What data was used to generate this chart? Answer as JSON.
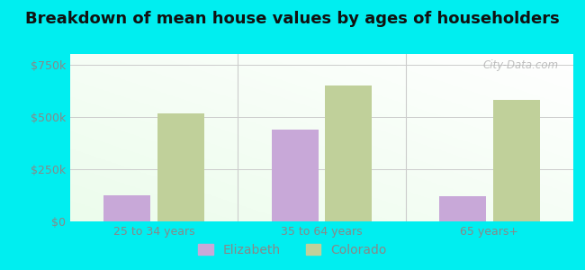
{
  "title": "Breakdown of mean house values by ages of householders",
  "categories": [
    "25 to 34 years",
    "35 to 64 years",
    "65 years+"
  ],
  "elizabeth_values": [
    125000,
    437500,
    120000
  ],
  "colorado_values": [
    515000,
    650000,
    580000
  ],
  "elizabeth_color": "#c8a8d8",
  "colorado_color": "#c0d09a",
  "ylim": [
    0,
    800000
  ],
  "yticks": [
    0,
    250000,
    500000,
    750000
  ],
  "ytick_labels": [
    "$0",
    "$250k",
    "$500k",
    "$750k"
  ],
  "legend_labels": [
    "Elizabeth",
    "Colorado"
  ],
  "bar_width": 0.28,
  "title_fontsize": 13,
  "tick_fontsize": 9,
  "legend_fontsize": 10,
  "watermark": "City-Data.com",
  "outer_bg": "#00eef0",
  "plot_bg": "#e8f5e8",
  "grid_color": "#cccccc",
  "tick_color": "#888888",
  "title_color": "#111111"
}
